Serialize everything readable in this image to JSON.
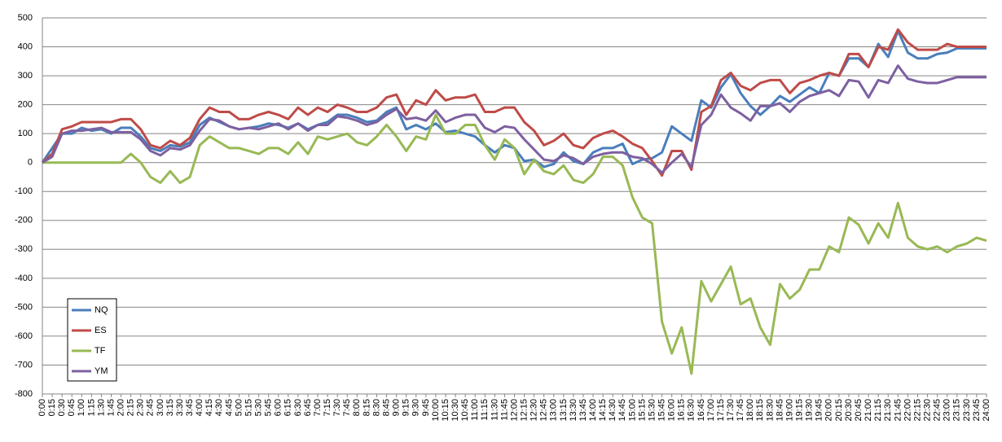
{
  "chart_data": {
    "type": "line",
    "categories": [
      "0:00",
      "0:15",
      "0:30",
      "0:45",
      "1:00",
      "1:15",
      "1:30",
      "1:45",
      "2:00",
      "2:15",
      "2:30",
      "2:45",
      "3:00",
      "3:15",
      "3:30",
      "3:45",
      "4:00",
      "4:15",
      "4:30",
      "4:45",
      "5:00",
      "5:15",
      "5:30",
      "5:45",
      "6:00",
      "6:15",
      "6:30",
      "6:45",
      "7:00",
      "7:15",
      "7:30",
      "7:45",
      "8:00",
      "8:15",
      "8:30",
      "8:45",
      "9:00",
      "9:15",
      "9:30",
      "9:45",
      "10:00",
      "10:15",
      "10:30",
      "10:45",
      "11:00",
      "11:15",
      "11:30",
      "11:45",
      "12:00",
      "12:15",
      "12:30",
      "12:45",
      "13:00",
      "13:15",
      "13:30",
      "13:45",
      "14:00",
      "14:15",
      "14:30",
      "14:45",
      "15:00",
      "15:15",
      "15:30",
      "15:45",
      "16:00",
      "16:15",
      "16:30",
      "16:45",
      "17:00",
      "17:15",
      "17:30",
      "17:45",
      "18:00",
      "18:15",
      "18:30",
      "18:45",
      "19:00",
      "19:15",
      "19:30",
      "19:45",
      "20:00",
      "20:15",
      "20:30",
      "20:45",
      "21:00",
      "21:15",
      "21:30",
      "21:45",
      "22:00",
      "22:15",
      "22:30",
      "22:45",
      "23:00",
      "23:15",
      "23:30",
      "23:45",
      "24:00"
    ],
    "series": [
      {
        "name": "NQ",
        "color": "#4a7ebb",
        "values": [
          0,
          50,
          100,
          100,
          120,
          110,
          115,
          100,
          120,
          120,
          90,
          50,
          40,
          60,
          55,
          70,
          130,
          155,
          140,
          125,
          115,
          120,
          125,
          135,
          130,
          120,
          135,
          115,
          130,
          140,
          165,
          165,
          155,
          140,
          145,
          175,
          190,
          115,
          130,
          115,
          135,
          105,
          110,
          100,
          90,
          60,
          35,
          60,
          50,
          5,
          10,
          -15,
          -5,
          35,
          5,
          -5,
          35,
          50,
          50,
          65,
          -5,
          10,
          15,
          35,
          125,
          100,
          75,
          215,
          190,
          260,
          305,
          240,
          195,
          165,
          195,
          230,
          210,
          235,
          260,
          240,
          310,
          300,
          360,
          360,
          330,
          410,
          365,
          455,
          380,
          360,
          360,
          375,
          380,
          395,
          395,
          395,
          395
        ]
      },
      {
        "name": "ES",
        "color": "#be4b48",
        "values": [
          0,
          30,
          115,
          125,
          140,
          140,
          140,
          140,
          150,
          150,
          115,
          60,
          50,
          75,
          60,
          85,
          150,
          190,
          175,
          175,
          150,
          150,
          165,
          175,
          165,
          150,
          190,
          165,
          190,
          175,
          200,
          190,
          175,
          175,
          190,
          225,
          235,
          165,
          215,
          200,
          250,
          215,
          225,
          225,
          235,
          175,
          175,
          190,
          190,
          140,
          110,
          60,
          75,
          100,
          60,
          50,
          85,
          100,
          110,
          90,
          65,
          50,
          5,
          -45,
          40,
          40,
          -25,
          175,
          195,
          285,
          310,
          265,
          250,
          275,
          285,
          285,
          240,
          275,
          285,
          300,
          310,
          300,
          375,
          375,
          330,
          400,
          390,
          460,
          415,
          390,
          390,
          390,
          410,
          400,
          400,
          400,
          400
        ]
      },
      {
        "name": "TF",
        "color": "#98b954",
        "values": [
          0,
          0,
          0,
          0,
          0,
          0,
          0,
          0,
          0,
          30,
          0,
          -50,
          -70,
          -30,
          -70,
          -50,
          60,
          90,
          70,
          50,
          50,
          40,
          30,
          50,
          50,
          30,
          70,
          30,
          90,
          80,
          90,
          100,
          70,
          60,
          90,
          130,
          90,
          40,
          90,
          80,
          165,
          100,
          100,
          130,
          130,
          60,
          10,
          80,
          50,
          -40,
          10,
          -30,
          -40,
          -10,
          -60,
          -70,
          -40,
          20,
          20,
          -10,
          -120,
          -190,
          -210,
          -550,
          -660,
          -570,
          -730,
          -410,
          -480,
          -420,
          -360,
          -490,
          -470,
          -570,
          -630,
          -420,
          -470,
          -440,
          -370,
          -370,
          -290,
          -310,
          -190,
          -215,
          -280,
          -210,
          -260,
          -140,
          -260,
          -290,
          -300,
          -290,
          -310,
          -290,
          -280,
          -260,
          -270
        ]
      },
      {
        "name": "YM",
        "color": "#7d60a0",
        "values": [
          0,
          20,
          100,
          110,
          110,
          115,
          120,
          105,
          105,
          105,
          80,
          40,
          25,
          50,
          45,
          60,
          110,
          150,
          145,
          125,
          115,
          120,
          115,
          125,
          135,
          115,
          135,
          110,
          130,
          130,
          160,
          155,
          145,
          130,
          140,
          165,
          185,
          150,
          155,
          145,
          180,
          140,
          155,
          165,
          165,
          120,
          105,
          125,
          120,
          80,
          45,
          10,
          5,
          25,
          15,
          -5,
          20,
          30,
          35,
          35,
          20,
          15,
          -5,
          -35,
          0,
          30,
          -15,
          130,
          165,
          235,
          190,
          170,
          145,
          195,
          195,
          205,
          175,
          210,
          230,
          240,
          250,
          230,
          285,
          280,
          225,
          285,
          275,
          335,
          290,
          280,
          275,
          275,
          285,
          295,
          295,
          295,
          295
        ]
      }
    ],
    "ylim": [
      -800,
      500
    ],
    "yticks": [
      -800,
      -700,
      -600,
      -500,
      -400,
      -300,
      -200,
      -100,
      0,
      100,
      200,
      300,
      400,
      500
    ],
    "grid": true,
    "legend": "lower left"
  }
}
